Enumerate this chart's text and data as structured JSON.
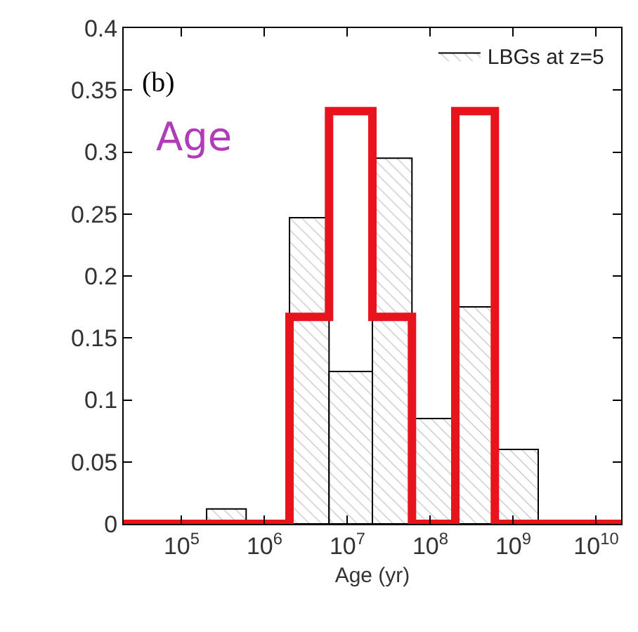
{
  "chart_data": {
    "type": "histogram",
    "xlabel": "Age (yr)",
    "log": "x",
    "bins": [
      200000,
      600000,
      2000000,
      6000000,
      20000000,
      60000000,
      200000000,
      600000000,
      2000000000
    ],
    "series": [
      {
        "name": "LBGs at z=5",
        "values": [
          0.012,
          0,
          0.247,
          0.123,
          0.295,
          0.085,
          0.175,
          0.06
        ]
      },
      {
        "type": "step",
        "color": "#e8141b",
        "x": [
          20000,
          2000000,
          6000000,
          20000000,
          60000000,
          200000000,
          600000000,
          20000000000
        ],
        "values": [
          0,
          0.167,
          0.333,
          0.167,
          0,
          0.333,
          0,
          0
        ]
      }
    ],
    "xlim": [
      20000,
      20000000000
    ],
    "xticks": [
      {
        "value": 100000,
        "label": "10$^{5}$"
      },
      {
        "value": 1000000,
        "label": "10$^{6}$"
      },
      {
        "value": 10000000,
        "label": "10$^{7}$"
      },
      {
        "value": 100000000,
        "label": "10$^{8}$"
      },
      {
        "value": 1000000000,
        "label": "10$^{9}$"
      },
      {
        "value": 10000000000,
        "label": "10$^{10}$"
      }
    ],
    "ylim": [
      0,
      0.4
    ],
    "yticks": [
      0,
      0.05,
      0.1,
      0.15,
      0.2,
      0.25,
      0.3,
      0.35,
      0.4
    ],
    "annotations": [
      "(b)",
      "Age"
    ],
    "legend": "top right"
  }
}
